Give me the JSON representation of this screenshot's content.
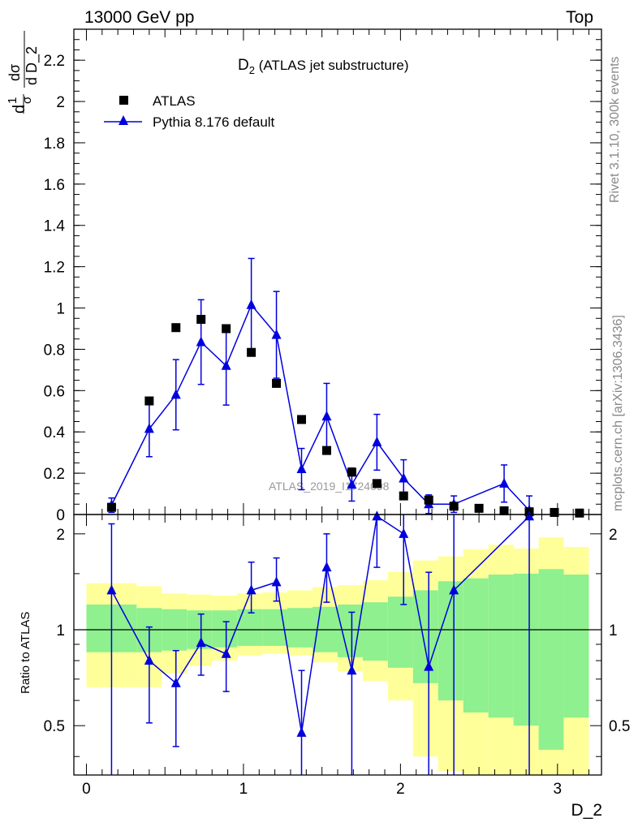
{
  "header": {
    "left": "13000 GeV pp",
    "right": "Top"
  },
  "side_labels": {
    "rivet": "Rivet 3.1.10,  300k events",
    "mcplots": "mcplots.cern.ch [arXiv:1306.3436]"
  },
  "plot_title_main": "D",
  "plot_title_sub": "2",
  "plot_title_rest": " (ATLAS jet substructure)",
  "watermark": "ATLAS_2019_I1724098",
  "legend": {
    "data_label": "ATLAS",
    "mc_label": "Pythia 8.176 default"
  },
  "y_axis_top": {
    "num_one": "1",
    "den_sigma": "σ",
    "num_dsigma": "dσ",
    "den_dD": "d D_2",
    "prefix_d": "d"
  },
  "y_axis_bottom_label": "Ratio to ATLAS",
  "x_axis_label": "D_2",
  "colors": {
    "mc": "#0000dd",
    "data": "#000000",
    "band_green": "#8ef08e",
    "band_yellow": "#ffff99"
  },
  "chart_data": [
    {
      "type": "scatter",
      "panel": "main",
      "xlim": [
        -0.08,
        3.28
      ],
      "ylim": [
        0,
        2.35
      ],
      "y_ticks": [
        0,
        0.2,
        0.4,
        0.6,
        0.8,
        1,
        1.2,
        1.4,
        1.6,
        1.8,
        2,
        2.2
      ],
      "y_tick_labels": [
        "0",
        "0.2",
        "0.4",
        "0.6",
        "0.8",
        "1",
        "1.2",
        "1.4",
        "1.6",
        "1.8",
        "2",
        "2.2"
      ],
      "series": [
        {
          "name": "ATLAS",
          "x": [
            0.16,
            0.4,
            0.57,
            0.73,
            0.89,
            1.05,
            1.21,
            1.37,
            1.53,
            1.69,
            1.85,
            2.02,
            2.18,
            2.34,
            2.5,
            2.66,
            2.82,
            2.98,
            3.14
          ],
          "y": [
            0.035,
            0.55,
            0.905,
            0.945,
            0.9,
            0.785,
            0.635,
            0.46,
            0.31,
            0.205,
            0.15,
            0.09,
            0.07,
            0.04,
            0.03,
            0.018,
            0.013,
            0.01,
            0.007
          ]
        },
        {
          "name": "Pythia 8.176 default",
          "x": [
            0.16,
            0.4,
            0.57,
            0.73,
            0.89,
            1.05,
            1.21,
            1.37,
            1.53,
            1.69,
            1.85,
            2.02,
            2.18,
            2.34,
            2.66,
            2.82
          ],
          "y": [
            0.045,
            0.415,
            0.58,
            0.835,
            0.72,
            1.015,
            0.87,
            0.22,
            0.475,
            0.145,
            0.35,
            0.175,
            0.05,
            0.05,
            0.15,
            0.02
          ],
          "err": [
            0.035,
            0.135,
            0.17,
            0.205,
            0.19,
            0.225,
            0.21,
            0.1,
            0.16,
            0.08,
            0.135,
            0.09,
            0.045,
            0.04,
            0.09,
            0.07
          ]
        }
      ]
    },
    {
      "type": "line",
      "panel": "ratio",
      "xlim": [
        -0.08,
        3.28
      ],
      "ylim": [
        0.35,
        2.3
      ],
      "y_scale": "log",
      "y_ticks": [
        0.5,
        1,
        2
      ],
      "y_tick_labels": [
        "0.5",
        "1",
        "2"
      ],
      "x_ticks": [
        0,
        1,
        2,
        3
      ],
      "x_tick_labels": [
        "0",
        "1",
        "2",
        "3"
      ],
      "ratio_reference": 1,
      "bands": {
        "bin_edges": [
          0,
          0.32,
          0.48,
          0.64,
          0.8,
          0.96,
          1.12,
          1.28,
          1.44,
          1.6,
          1.76,
          1.92,
          2.08,
          2.24,
          2.4,
          2.56,
          2.72,
          2.88,
          3.04,
          3.2
        ],
        "green_low": [
          0.85,
          0.85,
          0.86,
          0.87,
          0.88,
          0.89,
          0.89,
          0.88,
          0.85,
          0.82,
          0.8,
          0.76,
          0.68,
          0.6,
          0.55,
          0.53,
          0.5,
          0.42,
          0.53
        ],
        "green_high": [
          1.2,
          1.17,
          1.16,
          1.15,
          1.15,
          1.16,
          1.16,
          1.17,
          1.18,
          1.2,
          1.22,
          1.27,
          1.33,
          1.42,
          1.45,
          1.49,
          1.5,
          1.55,
          1.49
        ],
        "yellow_low": [
          0.66,
          0.66,
          0.73,
          0.77,
          0.8,
          0.83,
          0.84,
          0.83,
          0.79,
          0.74,
          0.69,
          0.6,
          0.4,
          0.36,
          0.33,
          0.33,
          0.35,
          0.33,
          0.3
        ],
        "yellow_high": [
          1.4,
          1.37,
          1.3,
          1.29,
          1.28,
          1.3,
          1.31,
          1.33,
          1.36,
          1.38,
          1.43,
          1.52,
          1.65,
          1.7,
          1.79,
          1.85,
          1.8,
          1.95,
          1.82
        ]
      },
      "series": [
        {
          "name": "Pythia 8.176 default",
          "x": [
            0.16,
            0.4,
            0.57,
            0.73,
            0.89,
            1.05,
            1.21,
            1.37,
            1.53,
            1.69,
            1.85,
            2.02,
            2.18,
            2.34,
            2.82
          ],
          "y": [
            1.33,
            0.8,
            0.68,
            0.91,
            0.84,
            1.33,
            1.41,
            0.475,
            1.57,
            0.745,
            2.27,
            2.0,
            0.765,
            1.33,
            2.27
          ],
          "err_low": [
            1.5,
            0.29,
            0.25,
            0.19,
            0.2,
            0.2,
            0.18,
            0.25,
            0.35,
            0.6,
            0.7,
            0.8,
            0.6,
            1.5,
            2.0
          ],
          "err_high": [
            0.82,
            0.22,
            0.18,
            0.21,
            0.22,
            0.3,
            0.27,
            0.27,
            0.43,
            0.39,
            0.7,
            0.6,
            0.75,
            1.5,
            1.0
          ]
        }
      ]
    }
  ]
}
